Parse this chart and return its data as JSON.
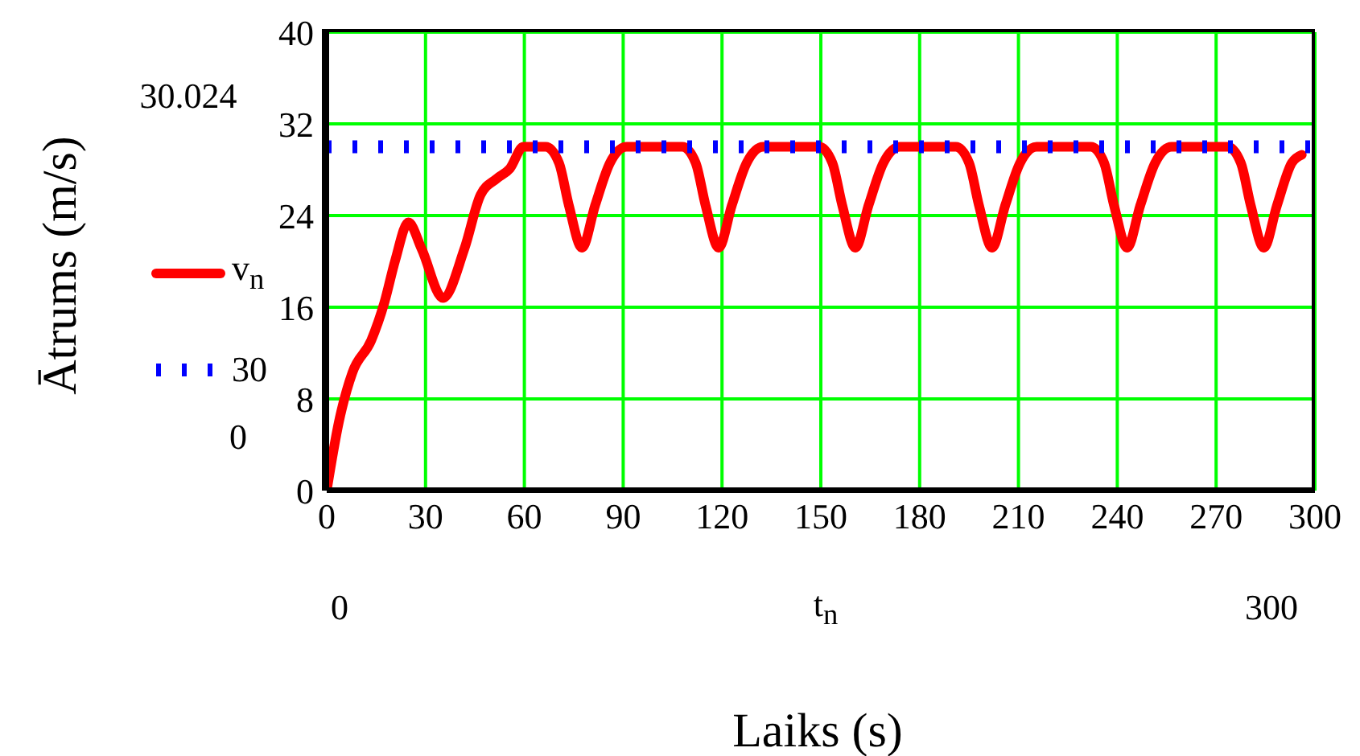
{
  "chart_data": {
    "type": "line",
    "ylabel": "Ātrums (m/s)",
    "xlim": [
      0,
      300
    ],
    "xticks": [
      0,
      30,
      60,
      90,
      120,
      150,
      180,
      210,
      240,
      270,
      300
    ],
    "ylim": [
      0,
      40
    ],
    "yticks": [
      0,
      8,
      16,
      24,
      32,
      40
    ],
    "grid": true,
    "legend": "left",
    "annotations": [
      "30.024",
      "0",
      "0",
      "t$_{n}$",
      "300",
      "Laiks (s)"
    ],
    "series": [
      {
        "name": "v$_{n}$",
        "color": "#ff0000",
        "line_style": "solid",
        "x": [
          0,
          3.7,
          7.8,
          13.5,
          17.5,
          20.8,
          24.8,
          28.8,
          35.3,
          41.8,
          46.7,
          51.5,
          55.6,
          59.7,
          66.5,
          70.5,
          73.5,
          77.5,
          81.5,
          86,
          91,
          108,
          112,
          115,
          119,
          123,
          127.5,
          132.5,
          149.5,
          153.5,
          156.5,
          160.5,
          164.5,
          169,
          174,
          191,
          195,
          198,
          202,
          206,
          210.5,
          215.5,
          232,
          236,
          239,
          243,
          247,
          251.5,
          256.5,
          273.5,
          277.5,
          280.5,
          284.5,
          288.5,
          293,
          296
        ],
        "values": [
          0,
          6.0,
          10.3,
          13.1,
          16.4,
          20.1,
          23.4,
          21.1,
          16.8,
          21.1,
          25.8,
          27.2,
          28.1,
          30,
          30,
          28.6,
          24.9,
          21.2,
          24.9,
          28.6,
          30,
          30,
          28.6,
          24.9,
          21.2,
          24.9,
          28.6,
          30,
          30,
          28.6,
          24.9,
          21.2,
          24.9,
          28.6,
          30,
          30,
          28.6,
          24.9,
          21.2,
          24.9,
          28.6,
          30,
          30,
          28.6,
          24.9,
          21.2,
          24.9,
          28.6,
          30,
          30,
          28.6,
          24.9,
          21.2,
          24.9,
          28.6,
          29.3
        ]
      },
      {
        "name": "30",
        "color": "#0000ff",
        "line_style": "dotted",
        "x": [
          0,
          300
        ],
        "values": [
          30,
          30
        ]
      }
    ]
  }
}
